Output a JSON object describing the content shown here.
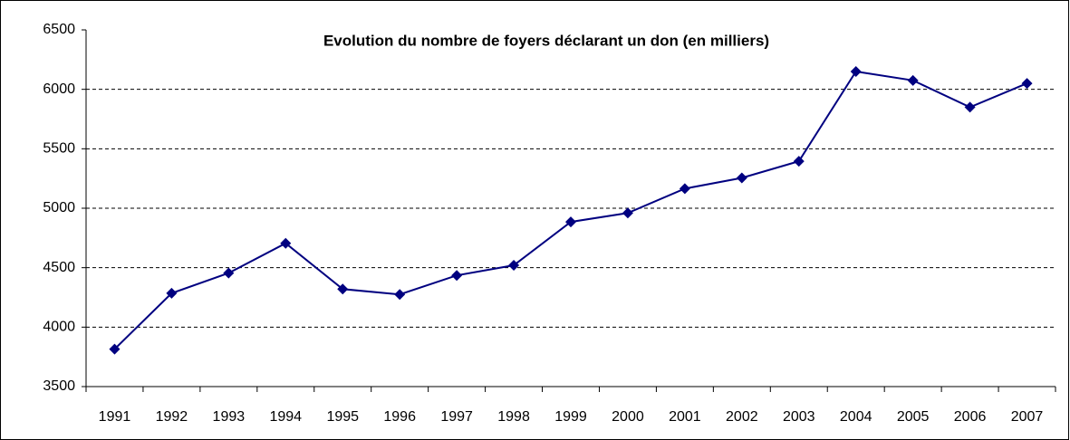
{
  "chart_data": {
    "type": "line",
    "title": "Evolution du nombre de foyers déclarant un don (en milliers)",
    "categories": [
      "1991",
      "1992",
      "1993",
      "1994",
      "1995",
      "1996",
      "1997",
      "1998",
      "1999",
      "2000",
      "2001",
      "2002",
      "2003",
      "2004",
      "2005",
      "2006",
      "2007"
    ],
    "values": [
      3815,
      4285,
      4455,
      4705,
      4320,
      4275,
      4435,
      4520,
      4885,
      4960,
      5165,
      5255,
      5395,
      6150,
      6075,
      5850,
      6050
    ],
    "color": "#000080",
    "ylim": [
      3500,
      6500
    ],
    "yticks": [
      3500,
      4000,
      4500,
      5000,
      5500,
      6000,
      6500
    ],
    "grid": true
  }
}
